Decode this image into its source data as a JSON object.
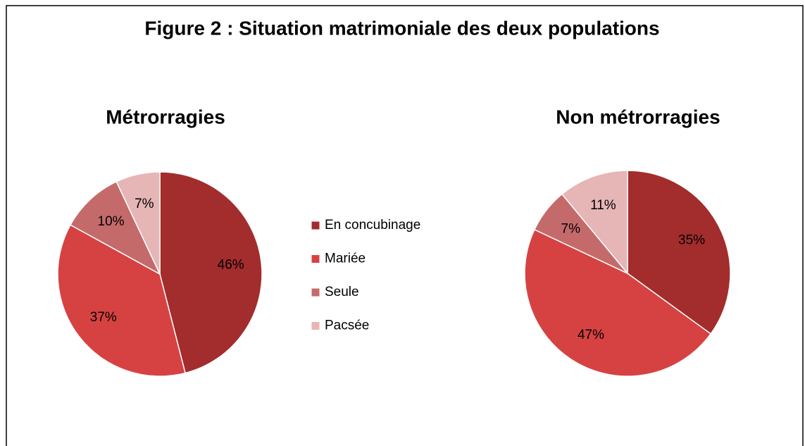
{
  "title": "Figure 2 : Situation matrimoniale des deux populations",
  "chart_data": [
    {
      "type": "pie",
      "title": "Métrorragies",
      "categories": [
        "En concubinage",
        "Mariée",
        "Seule",
        "Pacsée"
      ],
      "values": [
        46,
        37,
        10,
        7
      ],
      "value_labels": [
        "46%",
        "37%",
        "10%",
        "7%"
      ],
      "colors": [
        "#a32c2c",
        "#d64242",
        "#c56a6a",
        "#e6b5b5"
      ],
      "legend": "right"
    },
    {
      "type": "pie",
      "title": "Non métrorragies",
      "categories": [
        "En concubinage",
        "Mariée",
        "Seule",
        "Pacsée"
      ],
      "values": [
        35,
        47,
        7,
        11
      ],
      "value_labels": [
        "35%",
        "47%",
        "7%",
        "11%"
      ],
      "colors": [
        "#a32c2c",
        "#d64242",
        "#c56a6a",
        "#e6b5b5"
      ]
    }
  ]
}
